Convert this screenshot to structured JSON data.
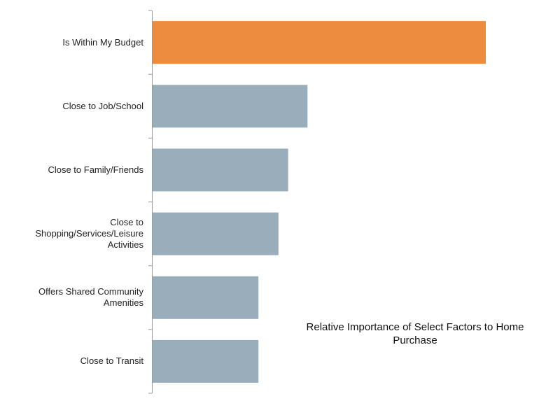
{
  "chart_data": {
    "type": "bar",
    "orientation": "horizontal",
    "title": "Relative Importance of Select Factors to Home Purchase",
    "xlabel": "",
    "ylabel": "",
    "categories": [
      "Is Within My Budget",
      "Close to Job/School",
      "Close to Family/Friends",
      "Close to Shopping/Services/Leisure Activities",
      "Offers Shared Community Amenities",
      "Close to Transit"
    ],
    "values": [
      100,
      46.6,
      40.8,
      37.9,
      31.9,
      31.9
    ],
    "xlim": [
      0,
      100
    ],
    "grid": false,
    "legend": "none",
    "colors": {
      "highlight": "#ED8B3E",
      "default": "#9AADBA",
      "axis": "#9A9A9A"
    },
    "highlight_index": 0
  }
}
